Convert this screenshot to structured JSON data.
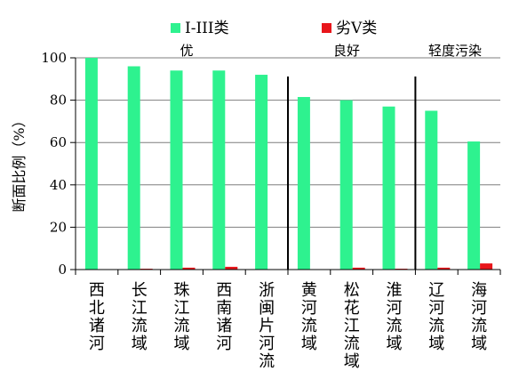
{
  "chart_data": {
    "type": "bar",
    "ylabel": "断面比例（%）",
    "ylim": [
      0,
      100
    ],
    "yticks": [
      0,
      20,
      40,
      60,
      80,
      100
    ],
    "grid": true,
    "legend_position": "top",
    "categories": [
      "西北诸河",
      "长江流域",
      "珠江流域",
      "西南诸河",
      "浙闽片河流",
      "黄河流域",
      "松花江流域",
      "淮河流域",
      "辽河流域",
      "海河流域"
    ],
    "series": [
      {
        "name": "I-III类",
        "color": "#2ef28f",
        "values": [
          100,
          96,
          94,
          94,
          92,
          81.5,
          80,
          77,
          75,
          60.5
        ]
      },
      {
        "name": "劣V类",
        "color": "#e8161b",
        "values": [
          0,
          0.4,
          0.9,
          1.3,
          0,
          0,
          0.9,
          0.4,
          0.9,
          2.9
        ]
      }
    ],
    "group_labels": [
      {
        "text": "优",
        "from": 0,
        "to": 4
      },
      {
        "text": "良好",
        "from": 5,
        "to": 7
      },
      {
        "text": "轻度污染",
        "from": 8,
        "to": 9
      }
    ],
    "dividers_after": [
      4,
      7
    ]
  }
}
